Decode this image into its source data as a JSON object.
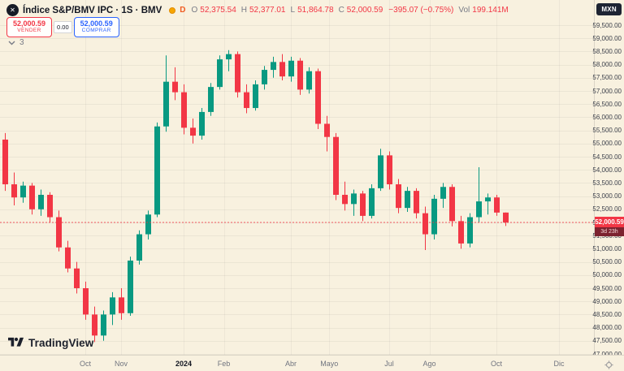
{
  "header": {
    "symbol_logo_glyph": "✕",
    "symbol_title": "Índice S&P/BMV IPC · 1S · BMV",
    "delayed_indicator": "D",
    "ohlc": {
      "o_label": "O",
      "o_value": "52,375.54",
      "h_label": "H",
      "h_value": "52,377.01",
      "l_label": "L",
      "l_value": "51,864.78",
      "c_label": "C",
      "c_value": "52,000.59",
      "change_value": "−395.07 (−0.75%)",
      "vol_label": "Vol",
      "vol_value": "199.141M"
    },
    "currency_button_label": "MXN"
  },
  "trade_panel": {
    "sell_price": "52,000.59",
    "sell_label": "VENDER",
    "spread_value": "0.00",
    "buy_price": "52,000.59",
    "buy_label": "COMPRAR"
  },
  "object_tree": {
    "count": "3"
  },
  "price_scale": {
    "last_price_label": "52,000.59",
    "countdown_label": "3d 23h"
  },
  "footer": {
    "logo_text": "TradingView"
  },
  "chart_data": {
    "type": "candlestick",
    "title": "Índice S&P/BMV IPC",
    "interval": "1S (weekly)",
    "exchange": "BMV",
    "currency": "MXN",
    "up_color": "#089981",
    "down_color": "#f23645",
    "last_price": 52000.59,
    "y_axis": {
      "min": 47000,
      "max": 59500,
      "tick_step": 500
    },
    "x_labels": [
      {
        "text": "Oct",
        "index": 9
      },
      {
        "text": "Nov",
        "index": 13
      },
      {
        "text": "2024",
        "index": 20,
        "major": true
      },
      {
        "text": "Feb",
        "index": 24.5
      },
      {
        "text": "Abr",
        "index": 32
      },
      {
        "text": "Mayo",
        "index": 36.3
      },
      {
        "text": "Jul",
        "index": 43
      },
      {
        "text": "Ago",
        "index": 47.5
      },
      {
        "text": "Oct",
        "index": 55
      },
      {
        "text": "Dic",
        "index": 62
      }
    ],
    "candle_format": [
      "open",
      "high",
      "low",
      "close"
    ],
    "candles": [
      [
        55150,
        55400,
        53200,
        53450
      ],
      [
        53450,
        53900,
        52650,
        52950
      ],
      [
        52950,
        53550,
        52750,
        53400
      ],
      [
        53400,
        53500,
        52300,
        52500
      ],
      [
        52500,
        53250,
        52250,
        53050
      ],
      [
        53050,
        53150,
        52000,
        52200
      ],
      [
        52200,
        52450,
        50900,
        51050
      ],
      [
        51050,
        51300,
        50100,
        50250
      ],
      [
        50250,
        50500,
        49300,
        49500
      ],
      [
        49500,
        49750,
        48300,
        48500
      ],
      [
        48500,
        48800,
        47450,
        47700
      ],
      [
        47700,
        48650,
        47500,
        48500
      ],
      [
        48500,
        49350,
        48100,
        49150
      ],
      [
        49150,
        49500,
        48300,
        48550
      ],
      [
        48550,
        50700,
        48450,
        50550
      ],
      [
        50550,
        51700,
        50400,
        51550
      ],
      [
        51550,
        52450,
        51350,
        52300
      ],
      [
        52300,
        55800,
        52200,
        55650
      ],
      [
        55650,
        58350,
        55450,
        57350
      ],
      [
        57350,
        57900,
        56650,
        56950
      ],
      [
        56950,
        57250,
        55350,
        55600
      ],
      [
        55600,
        55950,
        55000,
        55300
      ],
      [
        55300,
        56350,
        55150,
        56200
      ],
      [
        56200,
        57300,
        56050,
        57150
      ],
      [
        57150,
        58350,
        57050,
        58200
      ],
      [
        58200,
        58550,
        57750,
        58400
      ],
      [
        58400,
        58500,
        56750,
        56950
      ],
      [
        56950,
        57250,
        56150,
        56350
      ],
      [
        56350,
        57400,
        56250,
        57250
      ],
      [
        57250,
        57950,
        57050,
        57800
      ],
      [
        57800,
        58300,
        57500,
        58100
      ],
      [
        58100,
        58400,
        57400,
        57550
      ],
      [
        57550,
        58300,
        57350,
        58150
      ],
      [
        58150,
        58250,
        56850,
        57050
      ],
      [
        57050,
        57900,
        56900,
        57750
      ],
      [
        57750,
        57850,
        55550,
        55750
      ],
      [
        55750,
        56050,
        54700,
        55250
      ],
      [
        55250,
        55400,
        52850,
        53050
      ],
      [
        53050,
        53550,
        52450,
        52700
      ],
      [
        52700,
        53250,
        52250,
        53100
      ],
      [
        53100,
        53200,
        52050,
        52250
      ],
      [
        52250,
        53450,
        52150,
        53300
      ],
      [
        53300,
        54800,
        53200,
        54550
      ],
      [
        54550,
        54700,
        53250,
        53450
      ],
      [
        53450,
        53650,
        52350,
        52550
      ],
      [
        52550,
        53350,
        52400,
        53200
      ],
      [
        53200,
        53300,
        52150,
        52350
      ],
      [
        52350,
        52600,
        50950,
        51550
      ],
      [
        51550,
        53050,
        51350,
        52900
      ],
      [
        52900,
        53500,
        52550,
        53350
      ],
      [
        53350,
        53450,
        51850,
        52050
      ],
      [
        52050,
        52250,
        51000,
        51200
      ],
      [
        51200,
        52350,
        51050,
        52200
      ],
      [
        52200,
        54100,
        52000,
        52800
      ],
      [
        52800,
        53100,
        52300,
        52950
      ],
      [
        52950,
        53050,
        52250,
        52375
      ],
      [
        52375.54,
        52377.01,
        51864.78,
        52000.59
      ]
    ]
  }
}
